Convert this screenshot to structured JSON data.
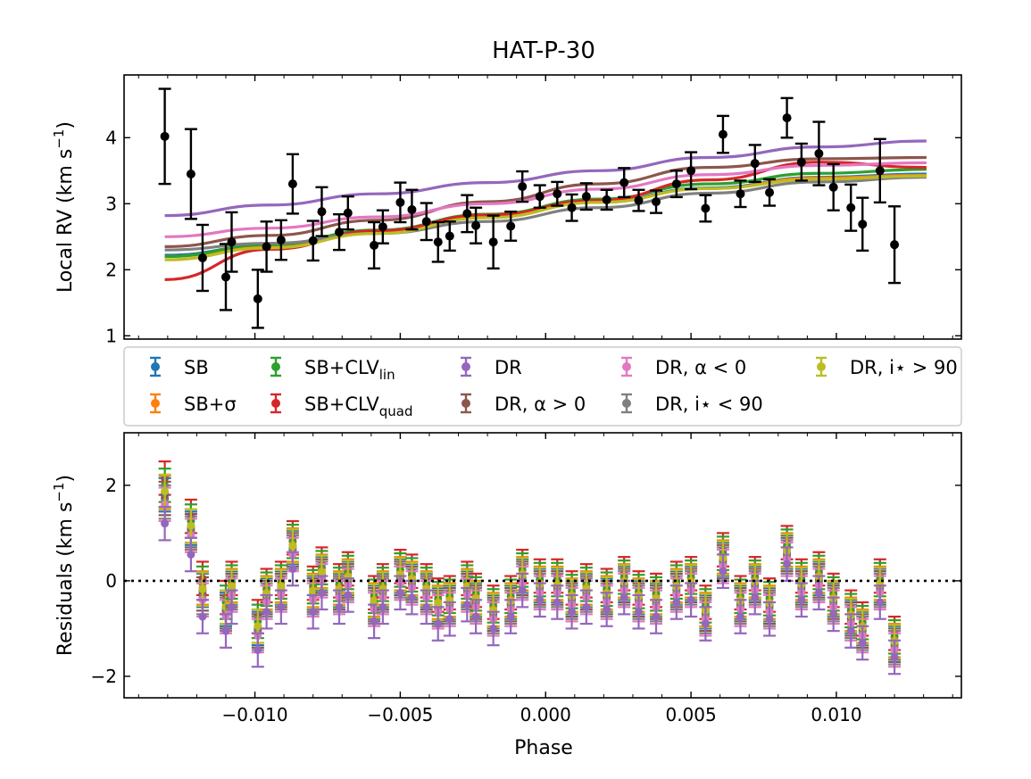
{
  "chart_data": {
    "type": "scatter",
    "title": "HAT-P-30",
    "xlabel": "Phase",
    "xlim": [
      -0.0145,
      0.0143
    ],
    "x_ticks": [
      -0.01,
      -0.005,
      0.0,
      0.005,
      0.01
    ],
    "x_tick_labels": [
      "−0.010",
      "−0.005",
      "0.000",
      "0.005",
      "0.010"
    ],
    "x": [
      -0.0131,
      -0.0122,
      -0.0118,
      -0.011,
      -0.0108,
      -0.0099,
      -0.0096,
      -0.0091,
      -0.0087,
      -0.008,
      -0.0077,
      -0.0071,
      -0.0068,
      -0.0059,
      -0.0056,
      -0.005,
      -0.0046,
      -0.0041,
      -0.0037,
      -0.0033,
      -0.0027,
      -0.0024,
      -0.0018,
      -0.0012,
      -0.0008,
      -0.0002,
      0.0004,
      0.0009,
      0.0014,
      0.0021,
      0.0027,
      0.0032,
      0.0038,
      0.0045,
      0.005,
      0.0055,
      0.0061,
      0.0067,
      0.0072,
      0.0077,
      0.0083,
      0.0088,
      0.0094,
      0.0099,
      0.0105,
      0.0109,
      0.0115,
      0.012,
      0.0127,
      0.0131
    ],
    "panels": [
      {
        "id": "rv",
        "ylabel": "Local RV (km s",
        "ylabel_sup": "−1",
        "ylabel_end": ")",
        "ylim": [
          0.95,
          4.95
        ],
        "y_ticks": [
          1,
          2,
          3,
          4
        ],
        "y_tick_labels": [
          "1",
          "2",
          "3",
          "4"
        ],
        "observations": {
          "color": "#000000",
          "y": [
            4.02,
            3.45,
            2.18,
            1.89,
            2.42,
            1.56,
            2.35,
            2.45,
            3.3,
            2.44,
            2.88,
            2.57,
            2.86,
            2.37,
            2.65,
            3.02,
            2.91,
            2.73,
            2.42,
            2.51,
            2.85,
            2.67,
            2.42,
            2.66,
            3.26,
            3.11,
            3.15,
            2.94,
            3.11,
            3.06,
            3.32,
            3.05,
            3.03,
            3.3,
            3.5,
            2.93,
            4.05,
            3.15,
            3.61,
            3.17,
            4.3,
            3.63,
            3.76,
            3.25,
            2.94,
            2.69,
            3.5,
            2.38
          ],
          "err": [
            0.72,
            0.68,
            0.5,
            0.5,
            0.45,
            0.44,
            0.38,
            0.3,
            0.45,
            0.3,
            0.37,
            0.27,
            0.25,
            0.35,
            0.25,
            0.3,
            0.3,
            0.28,
            0.3,
            0.22,
            0.28,
            0.27,
            0.4,
            0.22,
            0.23,
            0.17,
            0.18,
            0.2,
            0.2,
            0.15,
            0.22,
            0.16,
            0.17,
            0.2,
            0.28,
            0.2,
            0.28,
            0.2,
            0.28,
            0.2,
            0.3,
            0.28,
            0.48,
            0.35,
            0.35,
            0.4,
            0.48,
            0.58
          ],
          "x_index": [
            0,
            2,
            3,
            5,
            7,
            11,
            13,
            14,
            17,
            19,
            21,
            23,
            25,
            27,
            29,
            31,
            33,
            35,
            37,
            39,
            41,
            43,
            45,
            47,
            50,
            52,
            54,
            56,
            58,
            60,
            62,
            64,
            66,
            68,
            70,
            72,
            74,
            76,
            78,
            80,
            82,
            84,
            86,
            88,
            90,
            92,
            94,
            96
          ]
        },
        "models": [
          {
            "name": "SB",
            "color": "#1f77b4",
            "y": [
              2.22,
              2.37,
              2.57,
              2.8,
              3.03,
              3.24,
              3.4,
              3.45
            ]
          },
          {
            "name": "SB+σ",
            "color": "#ff7f0e",
            "y": [
              2.2,
              2.36,
              2.56,
              2.79,
              3.02,
              3.23,
              3.39,
              3.43
            ]
          },
          {
            "name": "SB+CLV_lin",
            "color": "#2ca02c",
            "y": [
              2.2,
              2.38,
              2.6,
              2.84,
              3.07,
              3.3,
              3.46,
              3.52
            ]
          },
          {
            "name": "SB+CLV_quad",
            "color": "#d62728",
            "y": [
              1.85,
              2.31,
              2.59,
              2.83,
              3.05,
              3.36,
              3.63,
              3.55
            ]
          },
          {
            "name": "DR",
            "color": "#9467bd",
            "y": [
              2.82,
              2.98,
              3.15,
              3.32,
              3.5,
              3.7,
              3.86,
              3.95
            ]
          },
          {
            "name": "DR, α > 0",
            "color": "#8c564b",
            "y": [
              2.35,
              2.52,
              2.75,
              3.03,
              3.3,
              3.55,
              3.68,
              3.7
            ]
          },
          {
            "name": "DR, α < 0",
            "color": "#e377c2",
            "y": [
              2.5,
              2.63,
              2.8,
              3.0,
              3.22,
              3.44,
              3.58,
              3.62
            ]
          },
          {
            "name": "DR, i⋆ < 90",
            "color": "#7f7f7f",
            "y": [
              2.3,
              2.4,
              2.55,
              2.73,
              2.94,
              3.16,
              3.33,
              3.4
            ]
          },
          {
            "name": "DR, i⋆ > 90",
            "color": "#bcbd22",
            "y": [
              2.15,
              2.33,
              2.55,
              2.79,
              3.02,
              3.23,
              3.37,
              3.42
            ]
          }
        ],
        "model_x": [
          -0.0131,
          -0.0095,
          -0.0058,
          -0.002,
          0.0018,
          0.0056,
          0.0094,
          0.0131
        ]
      },
      {
        "id": "residuals",
        "ylabel": "Residuals (km s",
        "ylabel_sup": "−1",
        "ylabel_end": ")",
        "ylim": [
          -2.45,
          3.1
        ],
        "y_ticks": [
          -2,
          0,
          2
        ],
        "y_tick_labels": [
          "−2",
          "0",
          "2"
        ],
        "zero_line": true,
        "points": [
          {
            "x": -0.0131,
            "vals": [
              2.15,
              1.85,
              1.6,
              1.2
            ]
          },
          {
            "x": -0.0122,
            "vals": [
              1.35,
              1.15,
              0.95,
              0.55
            ]
          },
          {
            "x": -0.0118,
            "vals": [
              0.05,
              -0.15,
              -0.4,
              -0.75
            ]
          },
          {
            "x": -0.011,
            "vals": [
              -0.35,
              -0.55,
              -0.75,
              -1.05
            ]
          },
          {
            "x": -0.0108,
            "vals": [
              0.05,
              -0.1,
              -0.3,
              -0.55
            ]
          },
          {
            "x": -0.0099,
            "vals": [
              -0.75,
              -0.95,
              -1.15,
              -1.45
            ]
          },
          {
            "x": -0.0096,
            "vals": [
              -0.1,
              -0.25,
              -0.45,
              -0.65
            ]
          },
          {
            "x": -0.0091,
            "vals": [
              0.05,
              -0.1,
              -0.3,
              -0.55
            ]
          },
          {
            "x": -0.0087,
            "vals": [
              0.9,
              0.75,
              0.55,
              0.25
            ]
          },
          {
            "x": -0.008,
            "vals": [
              -0.05,
              -0.2,
              -0.4,
              -0.65
            ]
          },
          {
            "x": -0.0077,
            "vals": [
              0.35,
              0.2,
              0.0,
              -0.25
            ]
          },
          {
            "x": -0.0071,
            "vals": [
              0.0,
              -0.15,
              -0.35,
              -0.55
            ]
          },
          {
            "x": -0.0068,
            "vals": [
              0.25,
              0.1,
              -0.1,
              -0.3
            ]
          },
          {
            "x": -0.0059,
            "vals": [
              -0.25,
              -0.4,
              -0.6,
              -0.85
            ]
          },
          {
            "x": -0.0056,
            "vals": [
              0.0,
              -0.15,
              -0.35,
              -0.55
            ]
          },
          {
            "x": -0.005,
            "vals": [
              0.3,
              0.15,
              -0.05,
              -0.25
            ]
          },
          {
            "x": -0.0046,
            "vals": [
              0.2,
              0.05,
              -0.15,
              -0.35
            ]
          },
          {
            "x": -0.0041,
            "vals": [
              0.0,
              -0.15,
              -0.35,
              -0.55
            ]
          },
          {
            "x": -0.0037,
            "vals": [
              -0.3,
              -0.45,
              -0.65,
              -0.9
            ]
          },
          {
            "x": -0.0033,
            "vals": [
              -0.25,
              -0.4,
              -0.6,
              -0.8
            ]
          },
          {
            "x": -0.0027,
            "vals": [
              0.05,
              -0.1,
              -0.3,
              -0.5
            ]
          },
          {
            "x": -0.0024,
            "vals": [
              -0.2,
              -0.35,
              -0.55,
              -0.75
            ]
          },
          {
            "x": -0.0018,
            "vals": [
              -0.45,
              -0.6,
              -0.8,
              -1.0
            ]
          },
          {
            "x": -0.0012,
            "vals": [
              -0.25,
              -0.4,
              -0.6,
              -0.75
            ]
          },
          {
            "x": -0.0008,
            "vals": [
              0.3,
              0.15,
              -0.05,
              -0.2
            ]
          },
          {
            "x": -0.0002,
            "vals": [
              0.1,
              -0.05,
              -0.25,
              -0.4
            ]
          },
          {
            "x": 0.0004,
            "vals": [
              0.1,
              -0.05,
              -0.25,
              -0.45
            ]
          },
          {
            "x": 0.0009,
            "vals": [
              -0.15,
              -0.3,
              -0.5,
              -0.65
            ]
          },
          {
            "x": 0.0014,
            "vals": [
              0.0,
              -0.15,
              -0.35,
              -0.55
            ]
          },
          {
            "x": 0.0021,
            "vals": [
              -0.1,
              -0.25,
              -0.45,
              -0.6
            ]
          },
          {
            "x": 0.0027,
            "vals": [
              0.15,
              0.0,
              -0.2,
              -0.35
            ]
          },
          {
            "x": 0.0032,
            "vals": [
              -0.15,
              -0.3,
              -0.5,
              -0.65
            ]
          },
          {
            "x": 0.0038,
            "vals": [
              -0.2,
              -0.35,
              -0.55,
              -0.75
            ]
          },
          {
            "x": 0.0045,
            "vals": [
              0.05,
              -0.1,
              -0.3,
              -0.45
            ]
          },
          {
            "x": 0.005,
            "vals": [
              0.15,
              0.0,
              -0.2,
              -0.4
            ]
          },
          {
            "x": 0.0055,
            "vals": [
              -0.45,
              -0.6,
              -0.8,
              -0.9
            ]
          },
          {
            "x": 0.0061,
            "vals": [
              0.65,
              0.5,
              0.3,
              0.2
            ]
          },
          {
            "x": 0.0067,
            "vals": [
              -0.25,
              -0.4,
              -0.6,
              -0.75
            ]
          },
          {
            "x": 0.0072,
            "vals": [
              0.15,
              0.0,
              -0.2,
              -0.35
            ]
          },
          {
            "x": 0.0077,
            "vals": [
              -0.3,
              -0.45,
              -0.65,
              -0.8
            ]
          },
          {
            "x": 0.0083,
            "vals": [
              0.8,
              0.65,
              0.45,
              0.35
            ]
          },
          {
            "x": 0.0088,
            "vals": [
              0.1,
              -0.05,
              -0.25,
              -0.4
            ]
          },
          {
            "x": 0.0094,
            "vals": [
              0.25,
              0.1,
              -0.1,
              -0.25
            ]
          },
          {
            "x": 0.0099,
            "vals": [
              -0.2,
              -0.35,
              -0.55,
              -0.7
            ]
          },
          {
            "x": 0.0105,
            "vals": [
              -0.55,
              -0.7,
              -0.9,
              -1.05
            ]
          },
          {
            "x": 0.0109,
            "vals": [
              -0.8,
              -0.95,
              -1.15,
              -1.3
            ]
          },
          {
            "x": 0.0115,
            "vals": [
              0.1,
              -0.05,
              -0.25,
              -0.45
            ]
          },
          {
            "x": 0.012,
            "vals": [
              -1.1,
              -1.25,
              -1.45,
              -1.6
            ]
          }
        ],
        "err": 0.35
      }
    ],
    "legend": {
      "placement": "between panels",
      "entries": [
        {
          "label": "SB",
          "color": "#1f77b4"
        },
        {
          "label": "SB+σ",
          "color": "#ff7f0e"
        },
        {
          "label": "SB+CLV",
          "sub": "lin",
          "color": "#2ca02c"
        },
        {
          "label": "SB+CLV",
          "sub": "quad",
          "color": "#d62728"
        },
        {
          "label": "DR",
          "color": "#9467bd"
        },
        {
          "label": "DR, α > 0",
          "color": "#8c564b"
        },
        {
          "label": "DR, α < 0",
          "color": "#e377c2"
        },
        {
          "label": "DR, i⋆ < 90",
          "color": "#7f7f7f"
        },
        {
          "label": "DR, i⋆ > 90",
          "color": "#bcbd22"
        }
      ]
    }
  }
}
